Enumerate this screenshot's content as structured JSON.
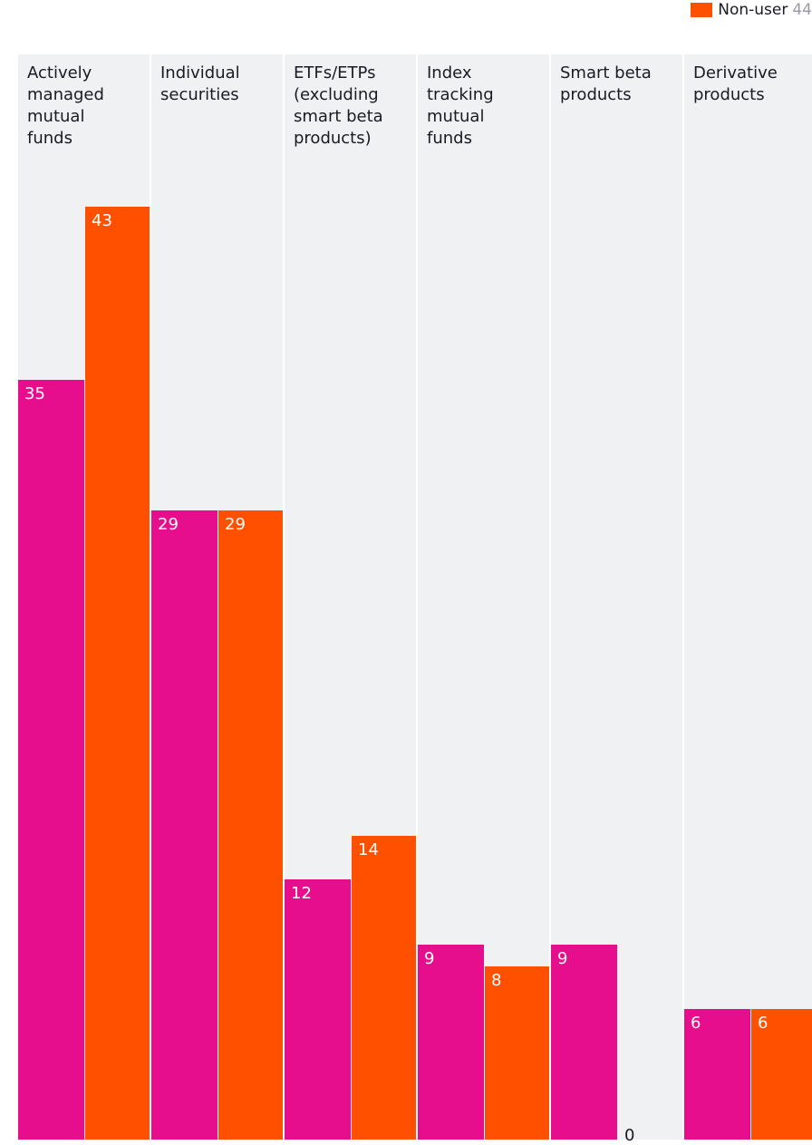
{
  "legend": {
    "label": "Non-user",
    "n": "44",
    "color": "#ff5000"
  },
  "chart_data": {
    "type": "bar",
    "categories": [
      "Actively\nmanaged\nmutual\nfunds",
      "Individual\nsecurities",
      "ETFs/ETPs\n(excluding\nsmart beta\nproducts)",
      "Index\ntracking\nmutual\nfunds",
      "Smart beta\nproducts",
      "Derivative\nproducts"
    ],
    "series": [
      {
        "values": [
          35,
          29,
          12,
          9,
          9,
          6
        ],
        "color": "#e60e8c"
      },
      {
        "name": "Non-user",
        "values": [
          43,
          29,
          14,
          8,
          0,
          6
        ],
        "color": "#ff5000"
      }
    ],
    "ylim": [
      0,
      43
    ],
    "legend_position": "top-right"
  }
}
